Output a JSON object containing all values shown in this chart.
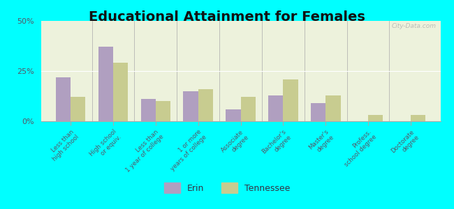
{
  "title": "Educational Attainment for Females",
  "categories": [
    "Less than\nhigh school",
    "High school\nor equiv.",
    "Less than\n1 year of college",
    "1 or more\nyears of college",
    "Associate\ndegree",
    "Bachelor's\ndegree",
    "Master's\ndegree",
    "Profess.\nschool degree",
    "Doctorate\ndegree"
  ],
  "erin_values": [
    22.0,
    37.0,
    11.0,
    15.0,
    6.0,
    13.0,
    9.0,
    0.0,
    0.0
  ],
  "tennessee_values": [
    12.0,
    29.0,
    10.0,
    16.0,
    12.0,
    21.0,
    13.0,
    3.0,
    3.0
  ],
  "erin_color": "#b09fc0",
  "tennessee_color": "#c8cc90",
  "background_color": "#edf2dc",
  "outer_background": "#00ffff",
  "ylim": [
    0,
    50
  ],
  "yticks": [
    0,
    25,
    50
  ],
  "ytick_labels": [
    "0%",
    "25%",
    "50%"
  ],
  "bar_width": 0.35,
  "title_fontsize": 14,
  "legend_labels": [
    "Erin",
    "Tennessee"
  ],
  "watermark": "City-Data.com"
}
